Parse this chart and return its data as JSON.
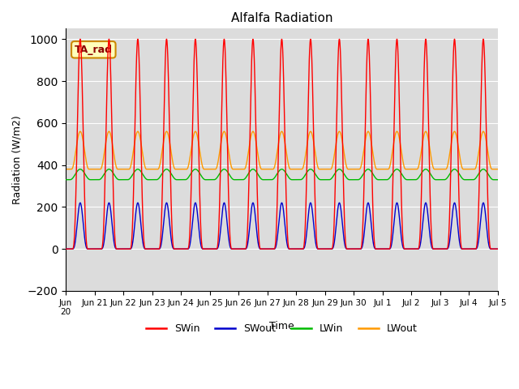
{
  "title": "Alfalfa Radiation",
  "ylabel": "Radiation (W/m2)",
  "xlabel": "Time",
  "text_label": "TA_rad",
  "ylim": [
    -200,
    1050
  ],
  "yticks": [
    -200,
    0,
    200,
    400,
    600,
    800,
    1000
  ],
  "n_days": 15,
  "SWin_peak": 1000,
  "SWout_peak": 220,
  "LWin_base": 330,
  "LWin_amp": 50,
  "LWout_night": 380,
  "LWout_peak": 560,
  "colors": {
    "SWin": "#ff0000",
    "SWout": "#0000cc",
    "LWin": "#00bb00",
    "LWout": "#ff9900"
  },
  "bg_color": "#dcdcdc",
  "text_box_facecolor": "#ffffbb",
  "text_box_edgecolor": "#cc8800",
  "tick_labels": [
    "Jun\n20",
    "Jun 21",
    "Jun 22",
    "Jun 23",
    "Jun 24",
    "Jun 25",
    "Jun 26",
    "Jun 27",
    "Jun 28",
    "Jun 29",
    "Jun 30",
    "Jul 1",
    "Jul 2",
    "Jul 3",
    "Jul 4",
    "Jul 5"
  ],
  "figsize": [
    6.4,
    4.8
  ],
  "dpi": 100
}
